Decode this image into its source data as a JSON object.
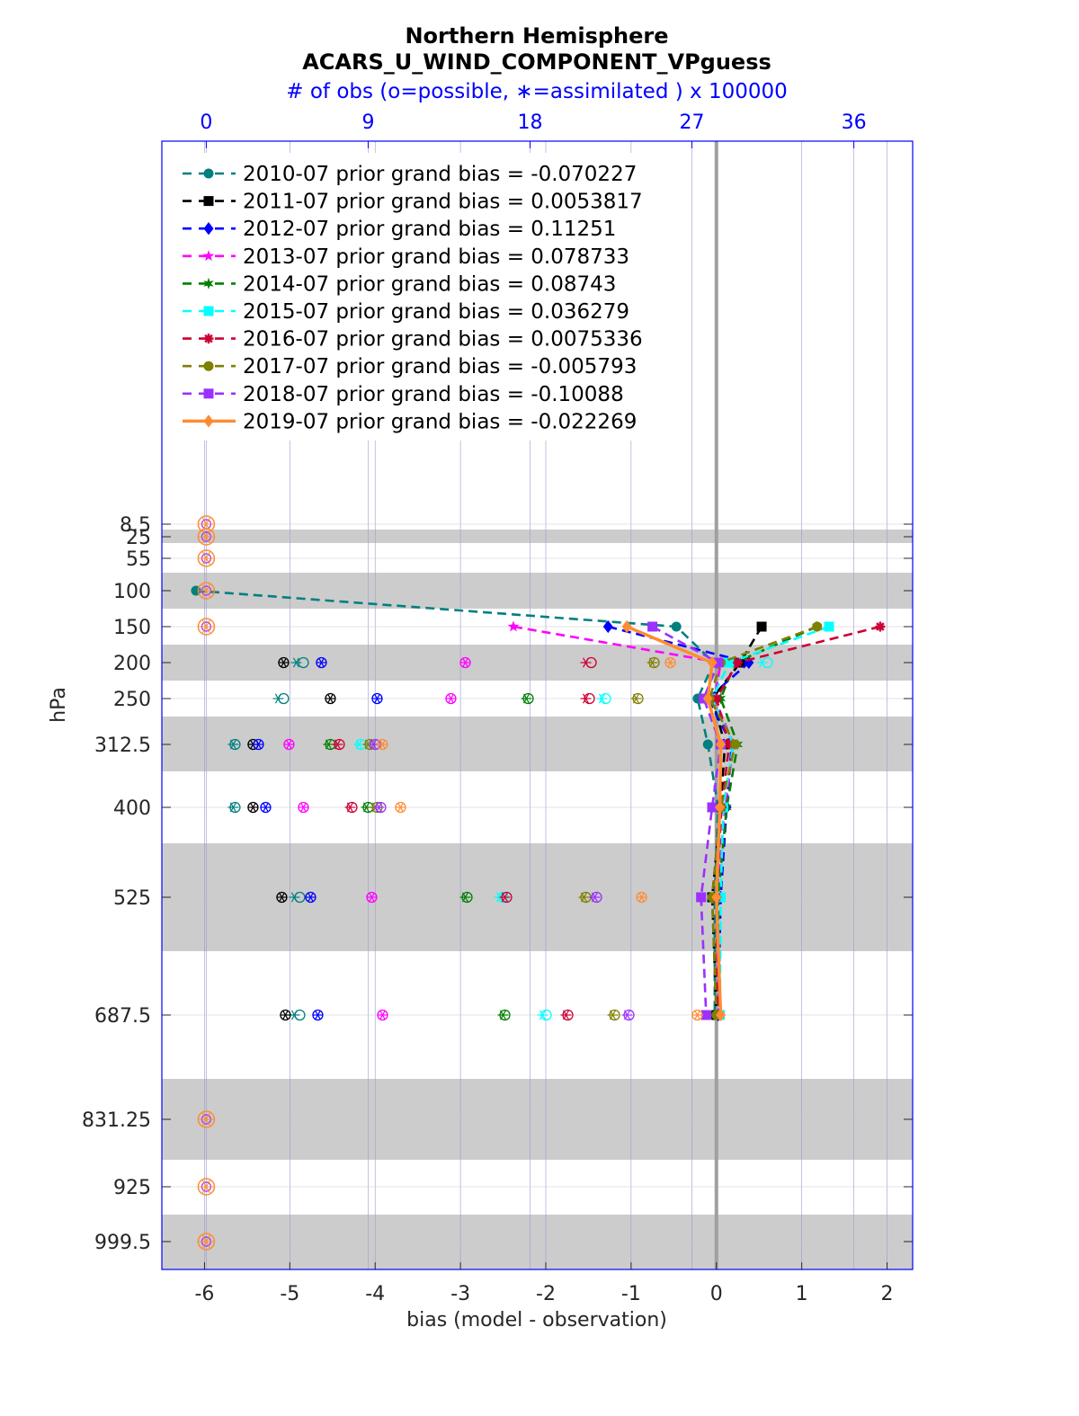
{
  "chart_data": {
    "type": "line",
    "title": "Northern Hemisphere",
    "subtitle": "ACARS_U_WIND_COMPONENT_VPguess",
    "top_axis_label": "# of obs (o=possible, ∗=assimilated ) x 100000",
    "xlabel": "bias (model - observation)",
    "ylabel": "hPa",
    "xlim": [
      -6.5,
      2.3
    ],
    "xticks": [
      "-6",
      "-5",
      "-4",
      "-3",
      "-2",
      "-1",
      "0",
      "1",
      "2"
    ],
    "top_xticks": [
      "0",
      "9",
      "18",
      "27",
      "36"
    ],
    "top_xlim": [
      -2.47,
      39.27
    ],
    "y_reversed_log": true,
    "levels": [
      8.5,
      25,
      55,
      100,
      150,
      200,
      250,
      312.5,
      400,
      525,
      687.5,
      831.25,
      925,
      999.5
    ],
    "level_labels": [
      "8.5",
      "25",
      "55",
      "100",
      "150",
      "200",
      "250",
      "312.5",
      "400",
      "525",
      "687.5",
      "831.25",
      "925",
      "999.5"
    ],
    "grid": true,
    "legend_position": "top-left",
    "series": [
      {
        "name": "2010-07 prior grand bias = -0.070227",
        "color": "#007f7f",
        "marker": "circle",
        "dash": true,
        "levels": [
          100,
          150,
          200,
          250,
          312.5,
          400,
          525,
          687.5
        ],
        "bias": [
          -6.1,
          -0.47,
          -0.03,
          -0.22,
          -0.1,
          0.02,
          -0.02,
          -0.02
        ],
        "obs_possible": [
          null,
          null,
          5.4,
          4.3,
          1.6,
          1.6,
          5.2,
          5.2
        ],
        "obs_assim": [
          null,
          null,
          5.0,
          4.0,
          1.5,
          1.5,
          4.9,
          4.9
        ]
      },
      {
        "name": "2011-07 prior grand bias = 0.0053817",
        "color": "#000000",
        "marker": "square",
        "dash": true,
        "levels": [
          150,
          200,
          250,
          312.5,
          400,
          525,
          687.5
        ],
        "bias": [
          0.53,
          0.28,
          -0.05,
          0.1,
          0.05,
          -0.05,
          0.0
        ],
        "obs_possible": [
          null,
          4.3,
          6.9,
          2.6,
          2.6,
          4.2,
          4.4
        ],
        "obs_assim": [
          null,
          4.3,
          6.9,
          2.6,
          2.6,
          4.2,
          4.4
        ]
      },
      {
        "name": "2012-07 prior grand bias = 0.11251",
        "color": "#0000ff",
        "marker": "diamond",
        "dash": true,
        "levels": [
          150,
          200,
          250,
          312.5,
          400,
          525,
          687.5
        ],
        "bias": [
          -1.27,
          0.38,
          -0.1,
          0.18,
          0.12,
          0.05,
          0.02
        ],
        "obs_possible": [
          null,
          6.4,
          9.5,
          2.9,
          3.3,
          5.8,
          6.2
        ],
        "obs_assim": [
          null,
          6.4,
          9.5,
          2.9,
          3.3,
          5.8,
          6.2
        ]
      },
      {
        "name": "2013-07 prior grand bias = 0.078733",
        "color": "#ff00ff",
        "marker": "star",
        "dash": true,
        "levels": [
          150,
          200,
          250,
          312.5,
          400,
          525,
          687.5
        ],
        "bias": [
          -2.38,
          0.05,
          -0.02,
          0.2,
          0.1,
          0.0,
          0.03
        ],
        "obs_possible": [
          null,
          14.4,
          13.6,
          4.6,
          5.4,
          9.2,
          9.8
        ],
        "obs_assim": [
          null,
          14.4,
          13.6,
          4.6,
          5.4,
          9.2,
          9.8
        ]
      },
      {
        "name": "2014-07 prior grand bias = 0.08743",
        "color": "#007f00",
        "marker": "hexagram",
        "dash": true,
        "levels": [
          150,
          200,
          250,
          312.5,
          400,
          525,
          687.5
        ],
        "bias": [
          1.18,
          0.22,
          0.05,
          0.25,
          0.12,
          0.02,
          0.03
        ],
        "obs_possible": [
          null,
          null,
          17.9,
          6.9,
          9.0,
          14.5,
          16.6
        ],
        "obs_assim": [
          null,
          null,
          17.8,
          6.8,
          8.9,
          14.4,
          16.5
        ]
      },
      {
        "name": "2015-07 prior grand bias = 0.036279",
        "color": "#00ffff",
        "marker": "square",
        "dash": true,
        "levels": [
          150,
          200,
          250,
          312.5,
          400,
          525,
          687.5
        ],
        "bias": [
          1.32,
          0.15,
          -0.05,
          0.2,
          0.08,
          0.05,
          0.04
        ],
        "obs_possible": [
          null,
          31.2,
          22.2,
          8.6,
          null,
          16.5,
          18.9
        ],
        "obs_assim": [
          null,
          30.9,
          22.0,
          8.5,
          null,
          16.3,
          18.7
        ]
      },
      {
        "name": "2016-07 prior grand bias = 0.0075336",
        "color": "#cc0033",
        "marker": "asterisk",
        "dash": true,
        "levels": [
          150,
          200,
          250,
          312.5,
          400,
          525,
          687.5
        ],
        "bias": [
          1.92,
          0.25,
          0.0,
          0.15,
          0.06,
          0.0,
          0.02
        ],
        "obs_possible": [
          null,
          21.4,
          21.3,
          7.4,
          8.1,
          16.7,
          20.1
        ],
        "obs_assim": [
          null,
          21.1,
          21.1,
          7.3,
          8.0,
          16.6,
          20.0
        ]
      },
      {
        "name": "2017-07 prior grand bias = -0.005793",
        "color": "#7f7f00",
        "marker": "circle",
        "dash": true,
        "levels": [
          150,
          200,
          250,
          312.5,
          400,
          525,
          687.5
        ],
        "bias": [
          1.18,
          0.05,
          -0.08,
          0.22,
          0.05,
          -0.05,
          0.0
        ],
        "obs_possible": [
          null,
          24.9,
          24.0,
          9.1,
          9.5,
          21.1,
          22.7
        ],
        "obs_assim": [
          null,
          24.8,
          23.9,
          9.0,
          9.4,
          21.0,
          22.6
        ]
      },
      {
        "name": "2018-07 prior grand bias = -0.10088",
        "color": "#9b30ff",
        "marker": "square",
        "dash": true,
        "levels": [
          150,
          200,
          250,
          312.5,
          400,
          525,
          687.5
        ],
        "bias": [
          -0.75,
          0.02,
          -0.15,
          0.05,
          -0.05,
          -0.18,
          -0.12
        ],
        "obs_possible": [
          null,
          null,
          null,
          9.4,
          9.7,
          21.7,
          23.5
        ],
        "obs_assim": [
          null,
          null,
          null,
          9.3,
          9.6,
          21.6,
          23.4
        ]
      },
      {
        "name": "2019-07 prior grand bias = -0.022269",
        "color": "#ff8c33",
        "marker": "diamond",
        "dash": false,
        "levels": [
          150,
          200,
          250,
          312.5,
          400,
          525,
          687.5
        ],
        "bias": [
          -1.05,
          -0.05,
          -0.1,
          0.05,
          0.04,
          0.0,
          0.05
        ],
        "obs_possible": [
          null,
          25.8,
          null,
          9.8,
          10.8,
          24.2,
          27.3
        ],
        "obs_assim": [
          null,
          25.8,
          null,
          9.8,
          10.8,
          24.2,
          27.3
        ]
      }
    ],
    "zero_obs_levels": [
      8.5,
      25,
      55,
      100,
      150,
      831.25,
      925,
      999.5
    ]
  }
}
